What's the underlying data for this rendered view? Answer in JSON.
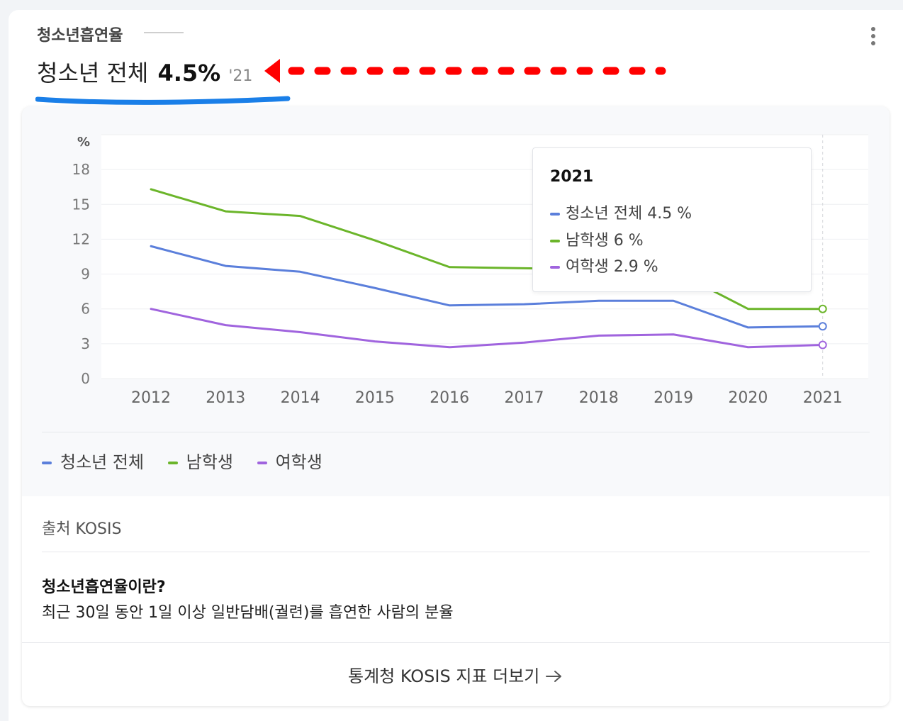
{
  "header": {
    "title": "청소년흡연율",
    "value_label": "청소년 전체",
    "value": "4.5%",
    "year": "'21"
  },
  "tooltip": {
    "year": "2021",
    "rows": [
      {
        "label": "청소년 전체",
        "value": "4.5 %"
      },
      {
        "label": "남학생",
        "value": "6 %"
      },
      {
        "label": "여학생",
        "value": "2.9 %"
      }
    ]
  },
  "legend": [
    "청소년 전체",
    "남학생",
    "여학생"
  ],
  "source": "출처 KOSIS",
  "definition": {
    "title": "청소년흡연율이란?",
    "text": "최근 30일 동안 1일 이상 일반담배(궐련)를 흡연한 사람의 분율"
  },
  "more_link": "통계청 KOSIS 지표 더보기",
  "colors": {
    "total": "#5b7fdb",
    "male": "#6bb52a",
    "female": "#a064de",
    "annotation_underline": "#1a7fe8",
    "annotation_arrow": "#ff0000"
  },
  "chart_data": {
    "type": "line",
    "ylabel": "%",
    "ylim": [
      0,
      21
    ],
    "yticks": [
      0,
      3,
      6,
      9,
      12,
      15,
      18
    ],
    "x": [
      "2012",
      "2013",
      "2014",
      "2015",
      "2016",
      "2017",
      "2018",
      "2019",
      "2020",
      "2021"
    ],
    "series": [
      {
        "name": "청소년 전체",
        "color": "#5b7fdb",
        "values": [
          11.4,
          9.7,
          9.2,
          7.8,
          6.3,
          6.4,
          6.7,
          6.7,
          4.4,
          4.5
        ]
      },
      {
        "name": "남학생",
        "color": "#6bb52a",
        "values": [
          16.3,
          14.4,
          14.0,
          11.9,
          9.6,
          9.5,
          9.4,
          9.3,
          6.0,
          6.0
        ]
      },
      {
        "name": "여학생",
        "color": "#a064de",
        "values": [
          6.0,
          4.6,
          4.0,
          3.2,
          2.7,
          3.1,
          3.7,
          3.8,
          2.7,
          2.9
        ]
      }
    ],
    "grid": true,
    "legend_position": "bottom-left"
  }
}
